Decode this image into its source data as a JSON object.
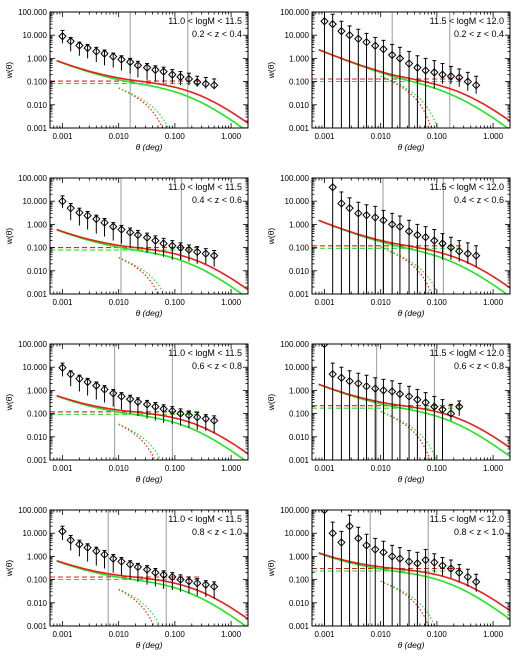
{
  "figure": {
    "panel_count": 8,
    "shared": {
      "xlabel": "θ (deg)",
      "ylabel": "w(θ)",
      "x_scale": "log",
      "y_scale": "log",
      "xlim": [
        0.0006,
        2.0
      ],
      "ylim": [
        0.001,
        100
      ],
      "x_ticks": [
        0.001,
        0.01,
        0.1,
        1.0
      ],
      "x_tick_labels": [
        "0.001",
        "0.010",
        "0.100",
        "1.000"
      ],
      "y_ticks": [
        0.001,
        0.01,
        0.1,
        1,
        10,
        100
      ],
      "y_tick_labels": [
        "0.001",
        "0.010",
        "0.100",
        "1.000",
        "10.000",
        "100.000"
      ],
      "colors": {
        "red": "#e8201c",
        "green": "#22e422",
        "olive": "#8c7a10",
        "data": "#000000",
        "guide": "#808080"
      }
    }
  },
  "chart_data": [
    {
      "type": "scatter",
      "label_mass": "11.0 < logM < 11.5",
      "label_z": "0.2 < z < 0.4",
      "x": [
        0.001,
        0.0014,
        0.002,
        0.0028,
        0.004,
        0.0056,
        0.008,
        0.0112,
        0.016,
        0.022,
        0.032,
        0.045,
        0.063,
        0.09,
        0.126,
        0.178,
        0.25,
        0.355,
        0.5
      ],
      "y": [
        9.0,
        5.5,
        3.6,
        2.8,
        2.0,
        1.6,
        1.2,
        0.9,
        0.7,
        0.5,
        0.4,
        0.32,
        0.27,
        0.2,
        0.16,
        0.13,
        0.095,
        0.08,
        0.07
      ],
      "err_lo": [
        4.5,
        2.0,
        1.3,
        1.0,
        0.7,
        0.5,
        0.4,
        0.3,
        0.22,
        0.15,
        0.12,
        0.1,
        0.09,
        0.08,
        0.07,
        0.07,
        0.06,
        0.05,
        0.05
      ],
      "err_hi": [
        16,
        8,
        5,
        4,
        3,
        2.3,
        1.7,
        1.3,
        1.0,
        0.75,
        0.6,
        0.48,
        0.42,
        0.33,
        0.27,
        0.23,
        0.17,
        0.15,
        0.13
      ],
      "model": {
        "amp": 5.6,
        "one_halo_cut": 0.04,
        "two_halo": 0.105
      },
      "vlines": [
        0.016,
        0.17
      ]
    },
    {
      "type": "scatter",
      "label_mass": "11.5 < logM < 12.0",
      "label_z": "0.2 < z < 0.4",
      "x": [
        0.001,
        0.0014,
        0.002,
        0.0028,
        0.004,
        0.0056,
        0.008,
        0.0112,
        0.016,
        0.022,
        0.032,
        0.045,
        0.063,
        0.09,
        0.126,
        0.178,
        0.25,
        0.355,
        0.5
      ],
      "y": [
        40,
        30,
        15,
        10,
        7,
        5,
        3.5,
        2.5,
        1.4,
        1.0,
        0.6,
        0.4,
        0.3,
        0.25,
        0.2,
        0.17,
        0.15,
        0.1,
        0.07
      ],
      "err_lo": [
        0.001,
        0.001,
        0.001,
        0.001,
        0.001,
        0.001,
        0.001,
        0.001,
        0.001,
        0.001,
        0.001,
        0.001,
        0.001,
        0.05,
        0.08,
        0.08,
        0.06,
        0.04,
        0.03
      ],
      "err_hi": [
        100,
        80,
        40,
        25,
        18,
        12,
        8,
        6,
        4,
        3,
        2,
        1.3,
        1.0,
        0.8,
        0.6,
        0.45,
        0.35,
        0.25,
        0.17
      ],
      "model": {
        "amp": 18,
        "one_halo_cut": 0.045,
        "two_halo": 0.13
      },
      "vlines": [
        0.016,
        0.17
      ]
    },
    {
      "type": "scatter",
      "label_mass": "11.0 < logM < 11.5",
      "label_z": "0.4 < z < 0.6",
      "x": [
        0.001,
        0.0014,
        0.002,
        0.0028,
        0.004,
        0.0056,
        0.008,
        0.0112,
        0.016,
        0.022,
        0.032,
        0.045,
        0.063,
        0.09,
        0.126,
        0.178,
        0.25,
        0.355,
        0.5
      ],
      "y": [
        10,
        5,
        3.2,
        2.4,
        1.7,
        1.2,
        0.8,
        0.6,
        0.45,
        0.35,
        0.27,
        0.2,
        0.15,
        0.12,
        0.1,
        0.08,
        0.065,
        0.055,
        0.045
      ],
      "err_lo": [
        5,
        1.5,
        0.9,
        0.6,
        0.4,
        0.3,
        0.2,
        0.15,
        0.1,
        0.08,
        0.06,
        0.05,
        0.04,
        0.03,
        0.03,
        0.025,
        0.02,
        0.02,
        0.015
      ],
      "err_hi": [
        17,
        8,
        5,
        3.6,
        2.5,
        1.8,
        1.2,
        0.9,
        0.7,
        0.55,
        0.42,
        0.32,
        0.25,
        0.2,
        0.16,
        0.13,
        0.11,
        0.09,
        0.075
      ],
      "model": {
        "amp": 4.0,
        "one_halo_cut": 0.035,
        "two_halo": 0.1
      },
      "vlines": [
        0.011,
        0.13
      ]
    },
    {
      "type": "scatter",
      "label_mass": "11.5 < logM < 12.0",
      "label_z": "0.4 < z < 0.6",
      "x": [
        0.0014,
        0.002,
        0.0028,
        0.004,
        0.0056,
        0.008,
        0.0112,
        0.016,
        0.022,
        0.032,
        0.045,
        0.063,
        0.09,
        0.126,
        0.178,
        0.25,
        0.355,
        0.5
      ],
      "y": [
        40,
        8,
        5,
        3,
        2.5,
        2,
        1.5,
        1.0,
        0.8,
        0.5,
        0.35,
        0.28,
        0.2,
        0.15,
        0.1,
        0.07,
        0.055,
        0.045
      ],
      "err_lo": [
        0.001,
        0.001,
        0.001,
        0.001,
        0.001,
        0.001,
        0.001,
        0.001,
        0.001,
        0.001,
        0.001,
        0.001,
        0.001,
        0.03,
        0.03,
        0.025,
        0.02,
        0.015
      ],
      "err_hi": [
        100,
        25,
        14,
        9,
        7,
        6,
        4,
        3,
        2.3,
        1.5,
        1.0,
        0.8,
        0.6,
        0.4,
        0.28,
        0.2,
        0.16,
        0.12
      ],
      "model": {
        "amp": 11,
        "one_halo_cut": 0.05,
        "two_halo": 0.12
      },
      "vlines": [
        0.011,
        0.13
      ]
    },
    {
      "type": "scatter",
      "label_mass": "11.0 < logM < 11.5",
      "label_z": "0.6 < z < 0.8",
      "x": [
        0.001,
        0.0014,
        0.002,
        0.0028,
        0.004,
        0.0056,
        0.008,
        0.0112,
        0.016,
        0.022,
        0.032,
        0.045,
        0.063,
        0.09,
        0.126,
        0.178,
        0.25,
        0.355,
        0.5
      ],
      "y": [
        9.5,
        5,
        3.2,
        2.3,
        1.6,
        1.1,
        0.75,
        0.55,
        0.42,
        0.32,
        0.25,
        0.2,
        0.16,
        0.13,
        0.1,
        0.085,
        0.07,
        0.06,
        0.05
      ],
      "err_lo": [
        4,
        1.5,
        0.9,
        0.6,
        0.4,
        0.3,
        0.2,
        0.15,
        0.1,
        0.08,
        0.06,
        0.05,
        0.04,
        0.035,
        0.03,
        0.025,
        0.02,
        0.018,
        0.015
      ],
      "err_hi": [
        15,
        7,
        4.5,
        3.3,
        2.3,
        1.6,
        1.1,
        0.8,
        0.62,
        0.48,
        0.37,
        0.3,
        0.24,
        0.2,
        0.16,
        0.13,
        0.11,
        0.09,
        0.08
      ],
      "model": {
        "amp": 3.8,
        "one_halo_cut": 0.03,
        "two_halo": 0.12
      },
      "vlines": [
        0.0085,
        0.09
      ]
    },
    {
      "type": "scatter",
      "label_mass": "11.5 < logM < 12.0",
      "label_z": "0.6 < z < 0.8",
      "x": [
        0.001,
        0.0014,
        0.002,
        0.0028,
        0.004,
        0.0056,
        0.008,
        0.0112,
        0.016,
        0.022,
        0.032,
        0.045,
        0.063,
        0.09,
        0.126,
        0.178,
        0.25
      ],
      "y": [
        100,
        5,
        3.5,
        2.5,
        2.0,
        1.5,
        1.2,
        1.0,
        0.9,
        0.7,
        0.55,
        0.4,
        0.3,
        0.2,
        0.15,
        0.1,
        0.2
      ],
      "err_lo": [
        0.001,
        0.001,
        0.001,
        0.001,
        0.001,
        0.001,
        0.001,
        0.001,
        0.001,
        0.001,
        0.001,
        0.001,
        0.001,
        0.001,
        0.001,
        0.05,
        0.08
      ],
      "err_hi": [
        300,
        15,
        10,
        7,
        5.5,
        4.5,
        3.5,
        3,
        2.6,
        2.0,
        1.5,
        1.1,
        0.8,
        0.55,
        0.4,
        0.25,
        0.35
      ],
      "model": {
        "amp": 13,
        "one_halo_cut": 0.045,
        "two_halo": 0.22
      },
      "vlines": [
        0.0085,
        0.09
      ]
    },
    {
      "type": "scatter",
      "label_mass": "11.0 < logM < 11.5",
      "label_z": "0.8 < z < 1.0",
      "x": [
        0.001,
        0.0014,
        0.002,
        0.0028,
        0.004,
        0.0056,
        0.008,
        0.0112,
        0.016,
        0.022,
        0.032,
        0.045,
        0.063,
        0.09,
        0.126,
        0.178,
        0.25,
        0.355,
        0.5
      ],
      "y": [
        12,
        5,
        3.3,
        2.4,
        1.7,
        1.2,
        0.8,
        0.6,
        0.45,
        0.35,
        0.27,
        0.2,
        0.16,
        0.13,
        0.1,
        0.085,
        0.07,
        0.06,
        0.05
      ],
      "err_lo": [
        5,
        1.8,
        1.0,
        0.6,
        0.4,
        0.3,
        0.2,
        0.15,
        0.1,
        0.08,
        0.06,
        0.05,
        0.04,
        0.035,
        0.03,
        0.025,
        0.02,
        0.018,
        0.015
      ],
      "err_hi": [
        20,
        8,
        5,
        3.5,
        2.5,
        1.8,
        1.2,
        0.9,
        0.65,
        0.5,
        0.4,
        0.3,
        0.24,
        0.2,
        0.16,
        0.13,
        0.11,
        0.09,
        0.08
      ],
      "model": {
        "amp": 4.2,
        "one_halo_cut": 0.028,
        "two_halo": 0.13
      },
      "vlines": [
        0.0065,
        0.07
      ]
    },
    {
      "type": "scatter",
      "label_mass": "11.5 < logM < 12.0",
      "label_z": "0.8 < z < 1.0",
      "x": [
        0.001,
        0.0014,
        0.002,
        0.0028,
        0.004,
        0.0056,
        0.008,
        0.0112,
        0.016,
        0.022,
        0.032,
        0.045,
        0.063,
        0.09,
        0.126,
        0.178,
        0.25,
        0.355,
        0.5
      ],
      "y": [
        100,
        10,
        4,
        20,
        6,
        3,
        2,
        1.5,
        1.0,
        0.8,
        0.6,
        0.5,
        0.7,
        0.55,
        0.4,
        0.3,
        0.2,
        0.13,
        0.08
      ],
      "err_lo": [
        0.001,
        0.001,
        0.001,
        0.001,
        0.001,
        0.001,
        0.001,
        0.001,
        0.001,
        0.001,
        0.001,
        0.001,
        0.001,
        0.2,
        0.15,
        0.12,
        0.08,
        0.05,
        0.03
      ],
      "err_hi": [
        300,
        30,
        12,
        60,
        18,
        9,
        6,
        4.5,
        3,
        2.4,
        1.8,
        1.5,
        2,
        1.3,
        0.9,
        0.7,
        0.45,
        0.28,
        0.17
      ],
      "model": {
        "amp": 9,
        "one_halo_cut": 0.045,
        "two_halo": 0.3
      },
      "vlines": [
        0.0065,
        0.07
      ]
    }
  ]
}
